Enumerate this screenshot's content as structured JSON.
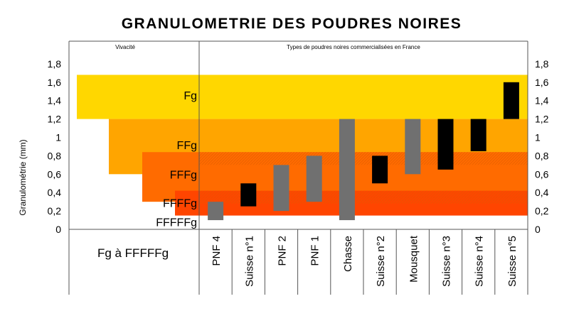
{
  "chart_data": {
    "type": "bar",
    "title": "GRANULOMETRIE DES POUDRES NOIRES",
    "ylabel": "Granulométrie (mm)",
    "ylim": [
      0,
      1.8
    ],
    "yticks": [
      "0",
      "0,2",
      "0,4",
      "0,6",
      "0,8",
      "1",
      "1,2",
      "1,4",
      "1,6",
      "1,8"
    ],
    "left_section_label": "Vivacité",
    "right_section_label": "Types de poudres noires commercialisées en France",
    "left_footer_label": "Fg à FFFFFg",
    "grades": [
      {
        "name": "Fg",
        "range": [
          1.2,
          1.68
        ],
        "color": "#ffd700"
      },
      {
        "name": "FFg",
        "range": [
          0.6,
          1.2
        ],
        "color": "#ffa500"
      },
      {
        "name": "FFFg",
        "range": [
          0.3,
          0.84
        ],
        "color": "#ff6b00"
      },
      {
        "name": "FFFFg",
        "range": [
          0.15,
          0.42
        ],
        "color": "#ff4500"
      },
      {
        "name": "FFFFFg",
        "range": [
          0.0,
          0.0
        ],
        "color": "#ff4500"
      }
    ],
    "categories": [
      "PNF 4",
      "Suisse n°1",
      "PNF 2",
      "PNF 1",
      "Chasse",
      "Suisse n°2",
      "Mousquet",
      "Suisse n°3",
      "Suisse n°4",
      "Suisse n°5"
    ],
    "series": [
      {
        "values": [
          [
            0.1,
            0.3
          ],
          [
            0.25,
            0.5
          ],
          [
            0.2,
            0.7
          ],
          [
            0.3,
            0.8
          ],
          [
            0.1,
            1.2
          ],
          [
            0.5,
            0.8
          ],
          [
            0.6,
            1.2
          ],
          [
            0.65,
            1.2
          ],
          [
            0.85,
            1.2
          ],
          [
            1.2,
            1.6
          ]
        ]
      }
    ],
    "bar_colors": [
      "#707070",
      "#000000",
      "#707070",
      "#707070",
      "#707070",
      "#000000",
      "#707070",
      "#000000",
      "#000000",
      "#000000"
    ],
    "grid": false
  }
}
